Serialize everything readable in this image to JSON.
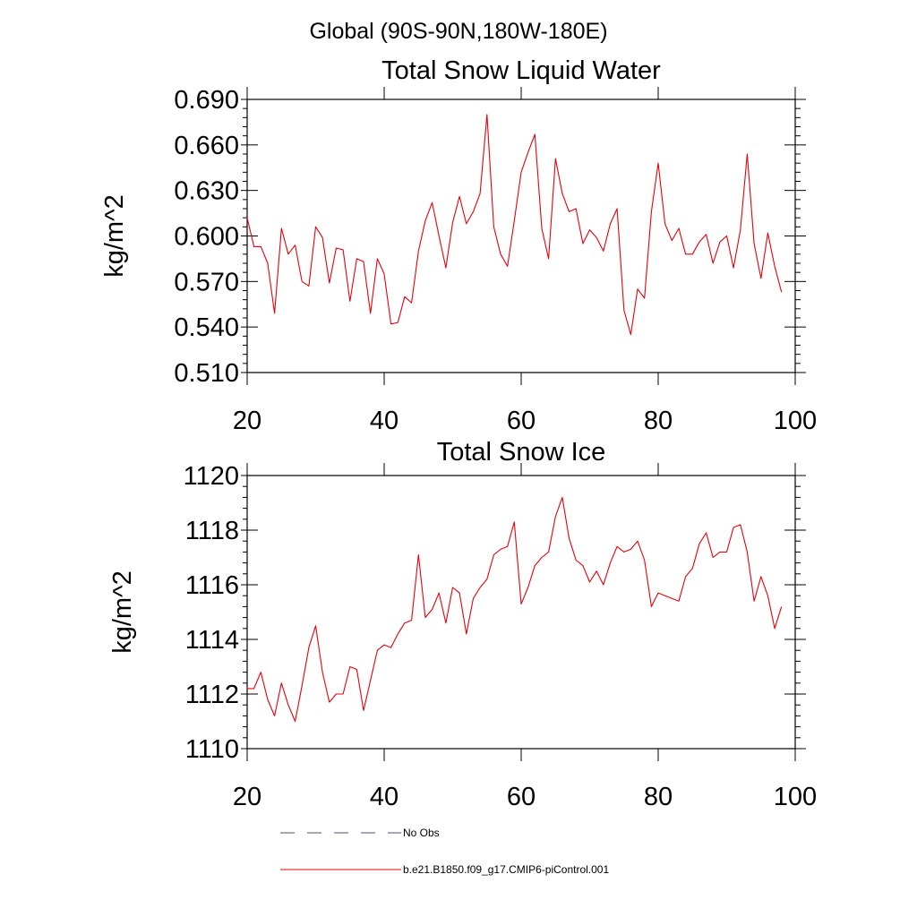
{
  "figure": {
    "suptitle": "Global (90S-90N,180W-180E)"
  },
  "legend": {
    "items": [
      {
        "label": "No Obs",
        "color": "#4b4f8a",
        "style": "dashed"
      },
      {
        "label": "b.e21.B1850.f09_g17.CMIP6-piControl.001",
        "color": "#e8000b",
        "style": "solid"
      }
    ]
  },
  "chart_data": [
    {
      "type": "line",
      "title": "Total Snow Liquid Water",
      "xlabel": "",
      "ylabel": "kg/m^2",
      "xlim": [
        20,
        100
      ],
      "ylim": [
        0.51,
        0.69
      ],
      "xticks": [
        "20",
        "40",
        "60",
        "80",
        "100"
      ],
      "yticks": [
        "0.510",
        "0.540",
        "0.570",
        "0.600",
        "0.630",
        "0.660",
        "0.690"
      ],
      "series": [
        {
          "name": "b.e21.B1850.f09_g17.CMIP6-piControl.001",
          "color": "#e8000b",
          "x": [
            20,
            21,
            22,
            23,
            24,
            25,
            26,
            27,
            28,
            29,
            30,
            31,
            32,
            33,
            34,
            35,
            36,
            37,
            38,
            39,
            40,
            41,
            42,
            43,
            44,
            45,
            46,
            47,
            48,
            49,
            50,
            51,
            52,
            53,
            54,
            55,
            56,
            57,
            58,
            59,
            60,
            61,
            62,
            63,
            64,
            65,
            66,
            67,
            68,
            69,
            70,
            71,
            72,
            73,
            74,
            75,
            76,
            77,
            78,
            79,
            80,
            81,
            82,
            83,
            84,
            85,
            86,
            87,
            88,
            89,
            90,
            91,
            92,
            93,
            94,
            95,
            96,
            97,
            98
          ],
          "values": [
            0.612,
            0.593,
            0.593,
            0.582,
            0.549,
            0.605,
            0.588,
            0.594,
            0.57,
            0.567,
            0.606,
            0.599,
            0.569,
            0.592,
            0.591,
            0.557,
            0.585,
            0.583,
            0.549,
            0.585,
            0.575,
            0.542,
            0.543,
            0.56,
            0.556,
            0.59,
            0.61,
            0.622,
            0.6,
            0.579,
            0.609,
            0.626,
            0.608,
            0.616,
            0.628,
            0.68,
            0.606,
            0.588,
            0.58,
            0.61,
            0.642,
            0.655,
            0.667,
            0.605,
            0.585,
            0.651,
            0.628,
            0.616,
            0.618,
            0.595,
            0.604,
            0.599,
            0.59,
            0.608,
            0.618,
            0.551,
            0.535,
            0.565,
            0.559,
            0.616,
            0.648,
            0.608,
            0.597,
            0.605,
            0.588,
            0.588,
            0.596,
            0.601,
            0.582,
            0.596,
            0.6,
            0.579,
            0.604,
            0.654,
            0.595,
            0.572,
            0.602,
            0.58,
            0.563
          ]
        }
      ]
    },
    {
      "type": "line",
      "title": "Total Snow Ice",
      "xlabel": "",
      "ylabel": "kg/m^2",
      "xlim": [
        20,
        100
      ],
      "ylim": [
        1110,
        1120
      ],
      "xticks": [
        "20",
        "40",
        "60",
        "80",
        "100"
      ],
      "yticks": [
        "1110",
        "1112",
        "1114",
        "1116",
        "1118",
        "1120"
      ],
      "series": [
        {
          "name": "b.e21.B1850.f09_g17.CMIP6-piControl.001",
          "color": "#e8000b",
          "x": [
            20,
            21,
            22,
            23,
            24,
            25,
            26,
            27,
            28,
            29,
            30,
            31,
            32,
            33,
            34,
            35,
            36,
            37,
            38,
            39,
            40,
            41,
            42,
            43,
            44,
            45,
            46,
            47,
            48,
            49,
            50,
            51,
            52,
            53,
            54,
            55,
            56,
            57,
            58,
            59,
            60,
            61,
            62,
            63,
            64,
            65,
            66,
            67,
            68,
            69,
            70,
            71,
            72,
            73,
            74,
            75,
            76,
            77,
            78,
            79,
            80,
            81,
            82,
            83,
            84,
            85,
            86,
            87,
            88,
            89,
            90,
            91,
            92,
            93,
            94,
            95,
            96,
            97,
            98
          ],
          "values": [
            1112.2,
            1112.2,
            1112.8,
            1111.8,
            1111.2,
            1112.4,
            1111.6,
            1111.0,
            1112.3,
            1113.7,
            1114.5,
            1112.8,
            1111.7,
            1112.0,
            1112.0,
            1113.0,
            1112.9,
            1111.4,
            1112.5,
            1113.6,
            1113.8,
            1113.7,
            1114.2,
            1114.6,
            1114.7,
            1117.1,
            1114.8,
            1115.1,
            1115.7,
            1114.6,
            1115.9,
            1115.7,
            1114.2,
            1115.5,
            1115.9,
            1116.2,
            1117.1,
            1117.3,
            1117.4,
            1118.3,
            1115.3,
            1115.9,
            1116.7,
            1117.0,
            1117.2,
            1118.5,
            1119.2,
            1117.7,
            1116.9,
            1116.7,
            1116.1,
            1116.5,
            1116.0,
            1116.8,
            1117.4,
            1117.2,
            1117.3,
            1117.6,
            1116.9,
            1115.2,
            1115.7,
            1115.6,
            1115.5,
            1115.4,
            1116.3,
            1116.6,
            1117.5,
            1117.9,
            1117.0,
            1117.2,
            1117.2,
            1118.1,
            1118.2,
            1117.2,
            1115.4,
            1116.3,
            1115.6,
            1114.4,
            1115.2
          ]
        }
      ]
    }
  ]
}
